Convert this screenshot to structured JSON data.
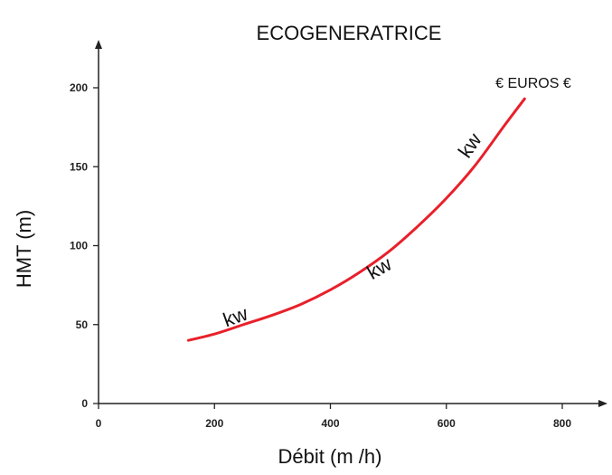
{
  "chart_data": {
    "type": "line",
    "title": "ECOGENERATRICE",
    "xlabel": "Débit (m /h)",
    "ylabel": "HMT (m)",
    "xlim": [
      0,
      900
    ],
    "ylim": [
      0,
      220
    ],
    "x_ticks": [
      "0",
      "200",
      "400",
      "600",
      "800"
    ],
    "x_tick_values": [
      0,
      200,
      400,
      600,
      800
    ],
    "y_ticks": [
      "0",
      "50",
      "100",
      "150",
      "200"
    ],
    "y_tick_values": [
      0,
      50,
      100,
      150,
      200
    ],
    "grid": false,
    "series": [
      {
        "color": "#e8202a",
        "x": [
          155,
          200,
          250,
          300,
          350,
          400,
          450,
          500,
          550,
          600,
          650,
          700,
          735
        ],
        "y": [
          40,
          44,
          50,
          56,
          63,
          72,
          83,
          96,
          112,
          130,
          151,
          176,
          193
        ]
      }
    ],
    "annotations": [
      {
        "text": "kw",
        "x": 240,
        "y": 51,
        "rotate": -20
      },
      {
        "text": "kw",
        "x": 490,
        "y": 82,
        "rotate": -30
      },
      {
        "text": "kw",
        "x": 650,
        "y": 161,
        "rotate": -55
      },
      {
        "text": "€ EUROS €",
        "x": 750,
        "y": 200,
        "rotate": 0
      }
    ]
  }
}
